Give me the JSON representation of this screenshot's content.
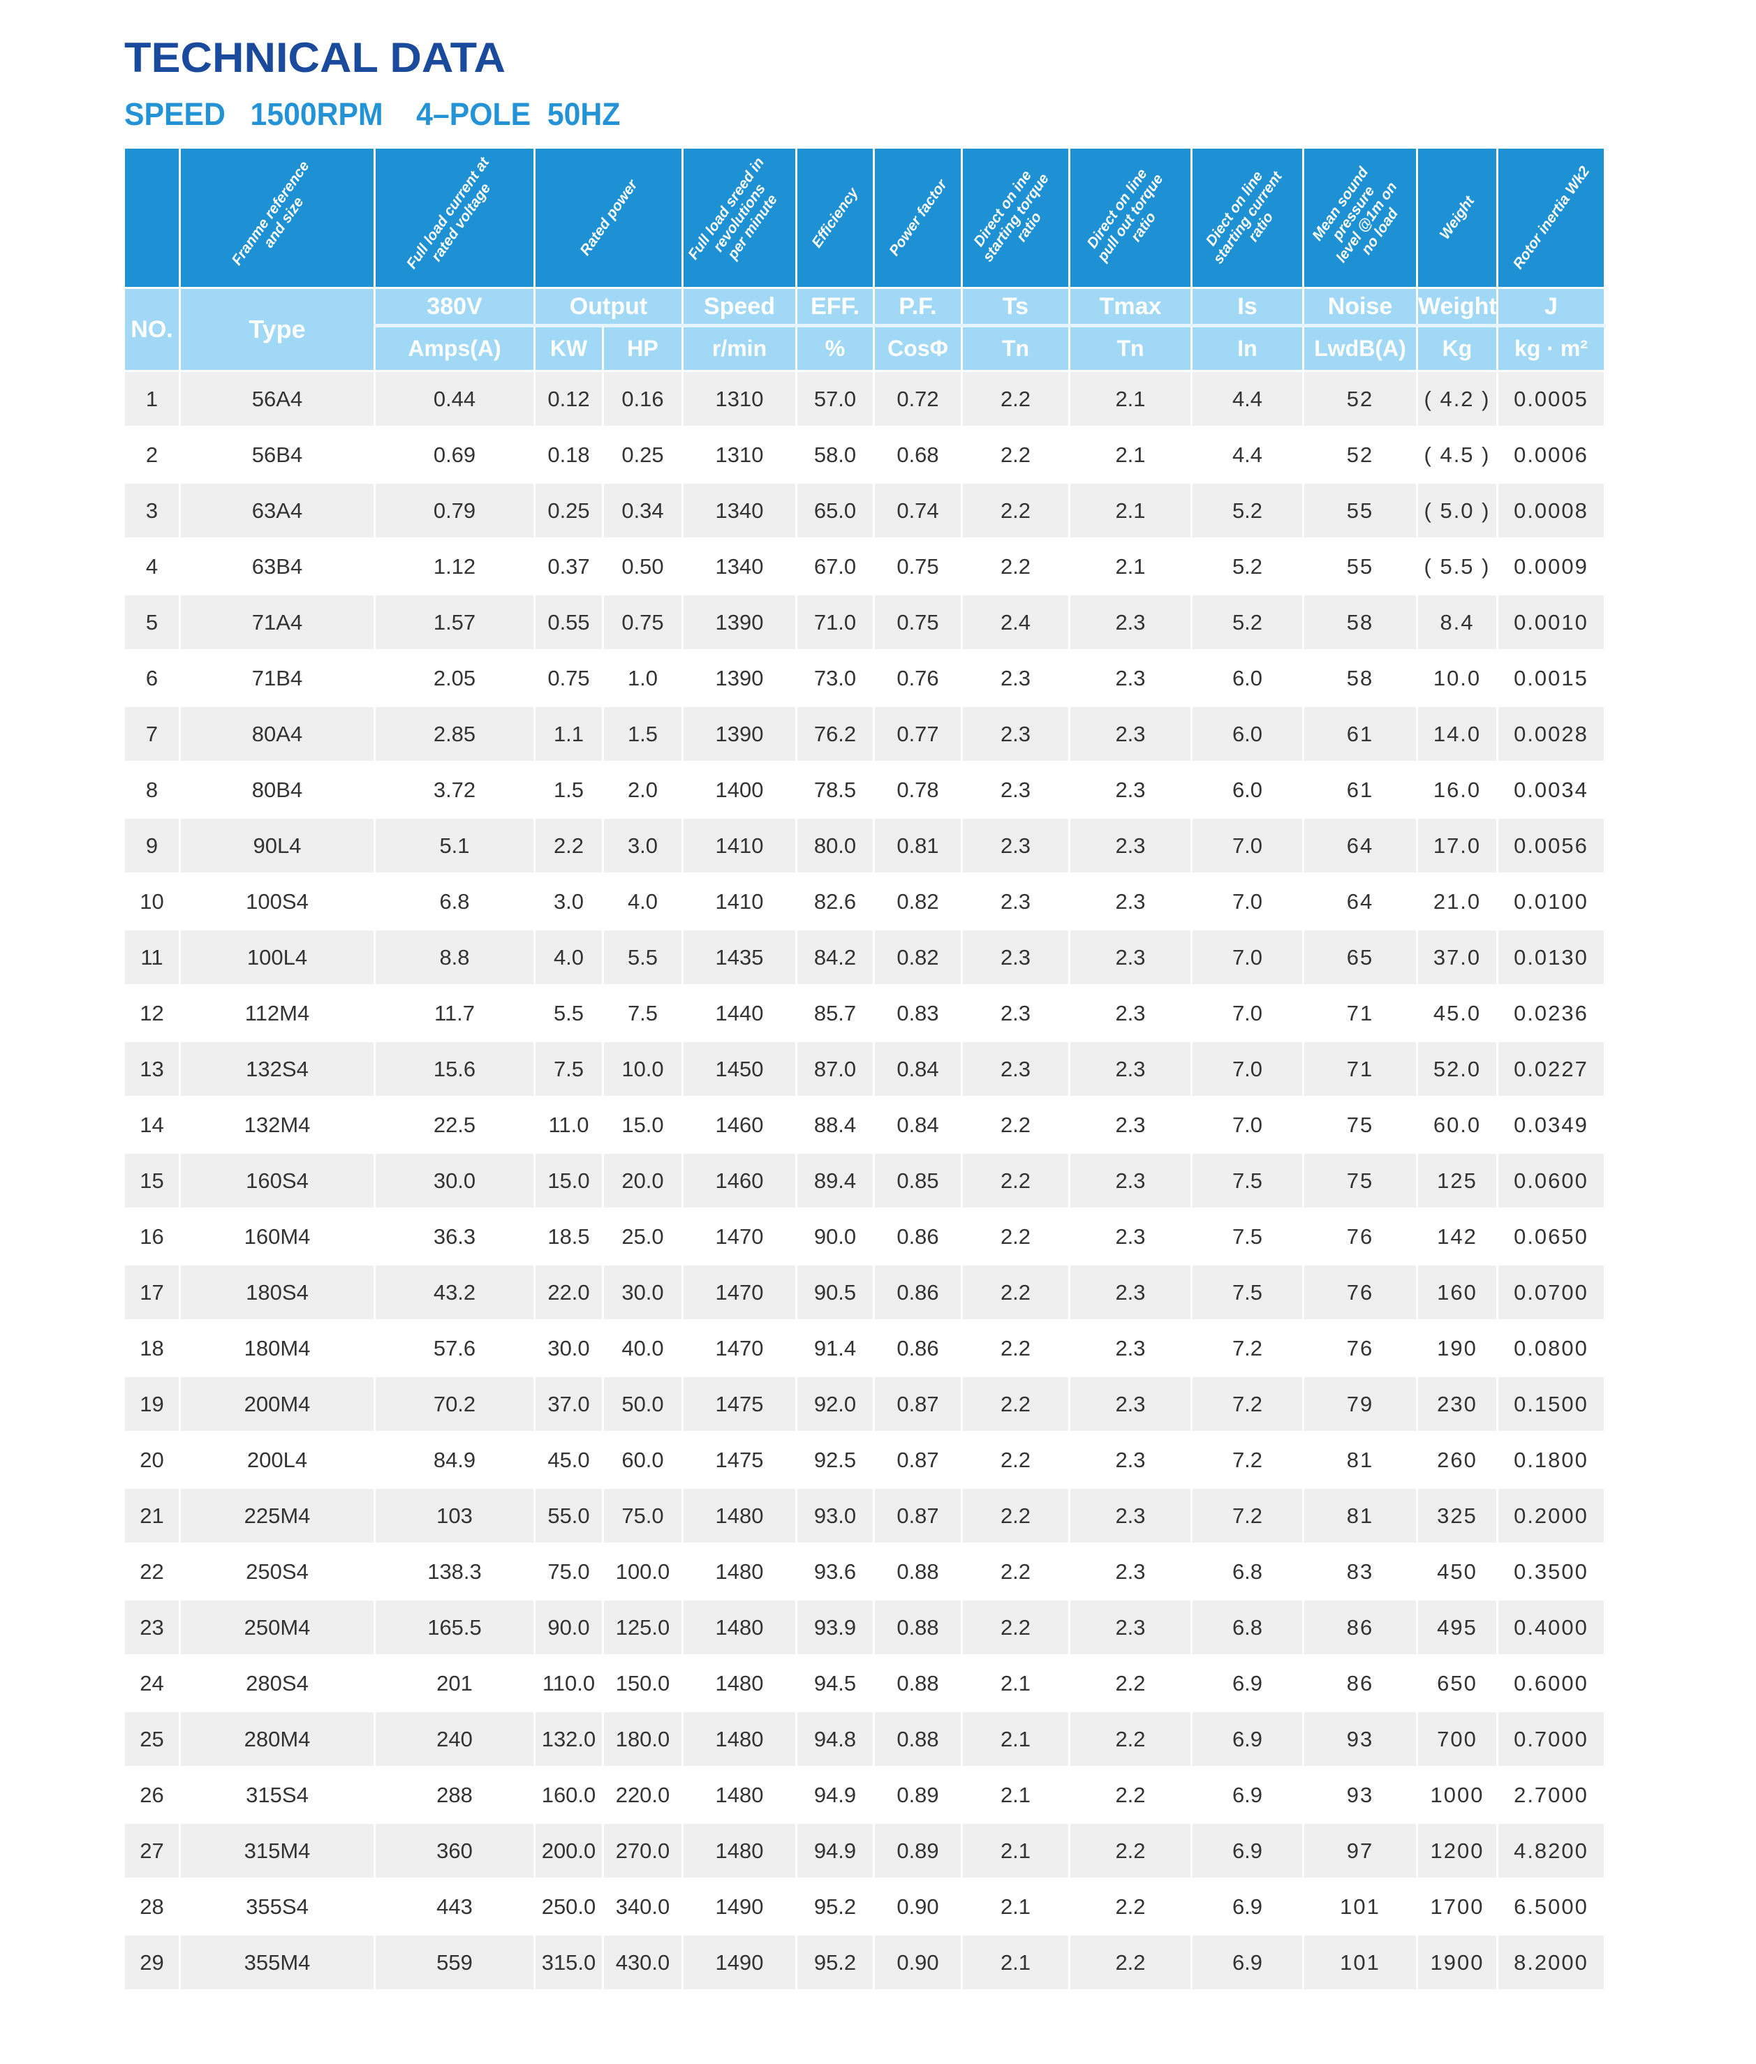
{
  "title": "TECHNICAL DATA",
  "subtitle": "SPEED   1500RPM    4–POLE  50HZ",
  "colors": {
    "title": "#1a4a9c",
    "subtitle": "#2393d6",
    "header_dark": "#1e90d4",
    "header_light": "#a0d8f5",
    "row_alt": "#efefef"
  },
  "header": {
    "descriptions": [
      "Franme reference\nand size",
      "Full load current at\nrated voltage",
      "Rated power",
      "Full load sreed in\nrevolutions\nper minute",
      "Efficiency",
      "Power factor",
      "Direct on ine\nstarting torque\nratio",
      "Direct on line\npull out torque\nratio",
      "Diect on line\nstarting current\nratio",
      "Mean sound\npressure\nlevel @1m on\nno load",
      "Weight",
      "Rotor inertia Wk2"
    ],
    "no": "NO.",
    "type": "Type",
    "voltage": "380V",
    "amps": "Amps(A)",
    "output": "Output",
    "kw": "KW",
    "hp": "HP",
    "speed": "Speed",
    "rmin": "r/min",
    "eff": "EFF.",
    "pct": "%",
    "pf": "P.F.",
    "cos": "CosΦ",
    "ts": "Ts",
    "tn1": "Tn",
    "tmax": "Tmax",
    "tn2": "Tn",
    "is": "Is",
    "in": "In",
    "noise": "Noise",
    "lwdb": "LwdB(A)",
    "weight": "Weight",
    "kg": "Kg",
    "j": "J",
    "kgm2": "kg · m²"
  },
  "rows": [
    [
      "1",
      "56A4",
      "0.44",
      "0.12",
      "0.16",
      "1310",
      "57.0",
      "0.72",
      "2.2",
      "2.1",
      "4.4",
      "52",
      "( 4.2 )",
      "0.0005"
    ],
    [
      "2",
      "56B4",
      "0.69",
      "0.18",
      "0.25",
      "1310",
      "58.0",
      "0.68",
      "2.2",
      "2.1",
      "4.4",
      "52",
      "( 4.5 )",
      "0.0006"
    ],
    [
      "3",
      "63A4",
      "0.79",
      "0.25",
      "0.34",
      "1340",
      "65.0",
      "0.74",
      "2.2",
      "2.1",
      "5.2",
      "55",
      "( 5.0 )",
      "0.0008"
    ],
    [
      "4",
      "63B4",
      "1.12",
      "0.37",
      "0.50",
      "1340",
      "67.0",
      "0.75",
      "2.2",
      "2.1",
      "5.2",
      "55",
      "( 5.5 )",
      "0.0009"
    ],
    [
      "5",
      "71A4",
      "1.57",
      "0.55",
      "0.75",
      "1390",
      "71.0",
      "0.75",
      "2.4",
      "2.3",
      "5.2",
      "58",
      "8.4",
      "0.0010"
    ],
    [
      "6",
      "71B4",
      "2.05",
      "0.75",
      "1.0",
      "1390",
      "73.0",
      "0.76",
      "2.3",
      "2.3",
      "6.0",
      "58",
      "10.0",
      "0.0015"
    ],
    [
      "7",
      "80A4",
      "2.85",
      "1.1",
      "1.5",
      "1390",
      "76.2",
      "0.77",
      "2.3",
      "2.3",
      "6.0",
      "61",
      "14.0",
      "0.0028"
    ],
    [
      "8",
      "80B4",
      "3.72",
      "1.5",
      "2.0",
      "1400",
      "78.5",
      "0.78",
      "2.3",
      "2.3",
      "6.0",
      "61",
      "16.0",
      "0.0034"
    ],
    [
      "9",
      "90L4",
      "5.1",
      "2.2",
      "3.0",
      "1410",
      "80.0",
      "0.81",
      "2.3",
      "2.3",
      "7.0",
      "64",
      "17.0",
      "0.0056"
    ],
    [
      "10",
      "100S4",
      "6.8",
      "3.0",
      "4.0",
      "1410",
      "82.6",
      "0.82",
      "2.3",
      "2.3",
      "7.0",
      "64",
      "21.0",
      "0.0100"
    ],
    [
      "11",
      "100L4",
      "8.8",
      "4.0",
      "5.5",
      "1435",
      "84.2",
      "0.82",
      "2.3",
      "2.3",
      "7.0",
      "65",
      "37.0",
      "0.0130"
    ],
    [
      "12",
      "112M4",
      "11.7",
      "5.5",
      "7.5",
      "1440",
      "85.7",
      "0.83",
      "2.3",
      "2.3",
      "7.0",
      "71",
      "45.0",
      "0.0236"
    ],
    [
      "13",
      "132S4",
      "15.6",
      "7.5",
      "10.0",
      "1450",
      "87.0",
      "0.84",
      "2.3",
      "2.3",
      "7.0",
      "71",
      "52.0",
      "0.0227"
    ],
    [
      "14",
      "132M4",
      "22.5",
      "11.0",
      "15.0",
      "1460",
      "88.4",
      "0.84",
      "2.2",
      "2.3",
      "7.0",
      "75",
      "60.0",
      "0.0349"
    ],
    [
      "15",
      "160S4",
      "30.0",
      "15.0",
      "20.0",
      "1460",
      "89.4",
      "0.85",
      "2.2",
      "2.3",
      "7.5",
      "75",
      "125",
      "0.0600"
    ],
    [
      "16",
      "160M4",
      "36.3",
      "18.5",
      "25.0",
      "1470",
      "90.0",
      "0.86",
      "2.2",
      "2.3",
      "7.5",
      "76",
      "142",
      "0.0650"
    ],
    [
      "17",
      "180S4",
      "43.2",
      "22.0",
      "30.0",
      "1470",
      "90.5",
      "0.86",
      "2.2",
      "2.3",
      "7.5",
      "76",
      "160",
      "0.0700"
    ],
    [
      "18",
      "180M4",
      "57.6",
      "30.0",
      "40.0",
      "1470",
      "91.4",
      "0.86",
      "2.2",
      "2.3",
      "7.2",
      "76",
      "190",
      "0.0800"
    ],
    [
      "19",
      "200M4",
      "70.2",
      "37.0",
      "50.0",
      "1475",
      "92.0",
      "0.87",
      "2.2",
      "2.3",
      "7.2",
      "79",
      "230",
      "0.1500"
    ],
    [
      "20",
      "200L4",
      "84.9",
      "45.0",
      "60.0",
      "1475",
      "92.5",
      "0.87",
      "2.2",
      "2.3",
      "7.2",
      "81",
      "260",
      "0.1800"
    ],
    [
      "21",
      "225M4",
      "103",
      "55.0",
      "75.0",
      "1480",
      "93.0",
      "0.87",
      "2.2",
      "2.3",
      "7.2",
      "81",
      "325",
      "0.2000"
    ],
    [
      "22",
      "250S4",
      "138.3",
      "75.0",
      "100.0",
      "1480",
      "93.6",
      "0.88",
      "2.2",
      "2.3",
      "6.8",
      "83",
      "450",
      "0.3500"
    ],
    [
      "23",
      "250M4",
      "165.5",
      "90.0",
      "125.0",
      "1480",
      "93.9",
      "0.88",
      "2.2",
      "2.3",
      "6.8",
      "86",
      "495",
      "0.4000"
    ],
    [
      "24",
      "280S4",
      "201",
      "110.0",
      "150.0",
      "1480",
      "94.5",
      "0.88",
      "2.1",
      "2.2",
      "6.9",
      "86",
      "650",
      "0.6000"
    ],
    [
      "25",
      "280M4",
      "240",
      "132.0",
      "180.0",
      "1480",
      "94.8",
      "0.88",
      "2.1",
      "2.2",
      "6.9",
      "93",
      "700",
      "0.7000"
    ],
    [
      "26",
      "315S4",
      "288",
      "160.0",
      "220.0",
      "1480",
      "94.9",
      "0.89",
      "2.1",
      "2.2",
      "6.9",
      "93",
      "1000",
      "2.7000"
    ],
    [
      "27",
      "315M4",
      "360",
      "200.0",
      "270.0",
      "1480",
      "94.9",
      "0.89",
      "2.1",
      "2.2",
      "6.9",
      "97",
      "1200",
      "4.8200"
    ],
    [
      "28",
      "355S4",
      "443",
      "250.0",
      "340.0",
      "1490",
      "95.2",
      "0.90",
      "2.1",
      "2.2",
      "6.9",
      "101",
      "1700",
      "6.5000"
    ],
    [
      "29",
      "355M4",
      "559",
      "315.0",
      "430.0",
      "1490",
      "95.2",
      "0.90",
      "2.1",
      "2.2",
      "6.9",
      "101",
      "1900",
      "8.2000"
    ]
  ]
}
